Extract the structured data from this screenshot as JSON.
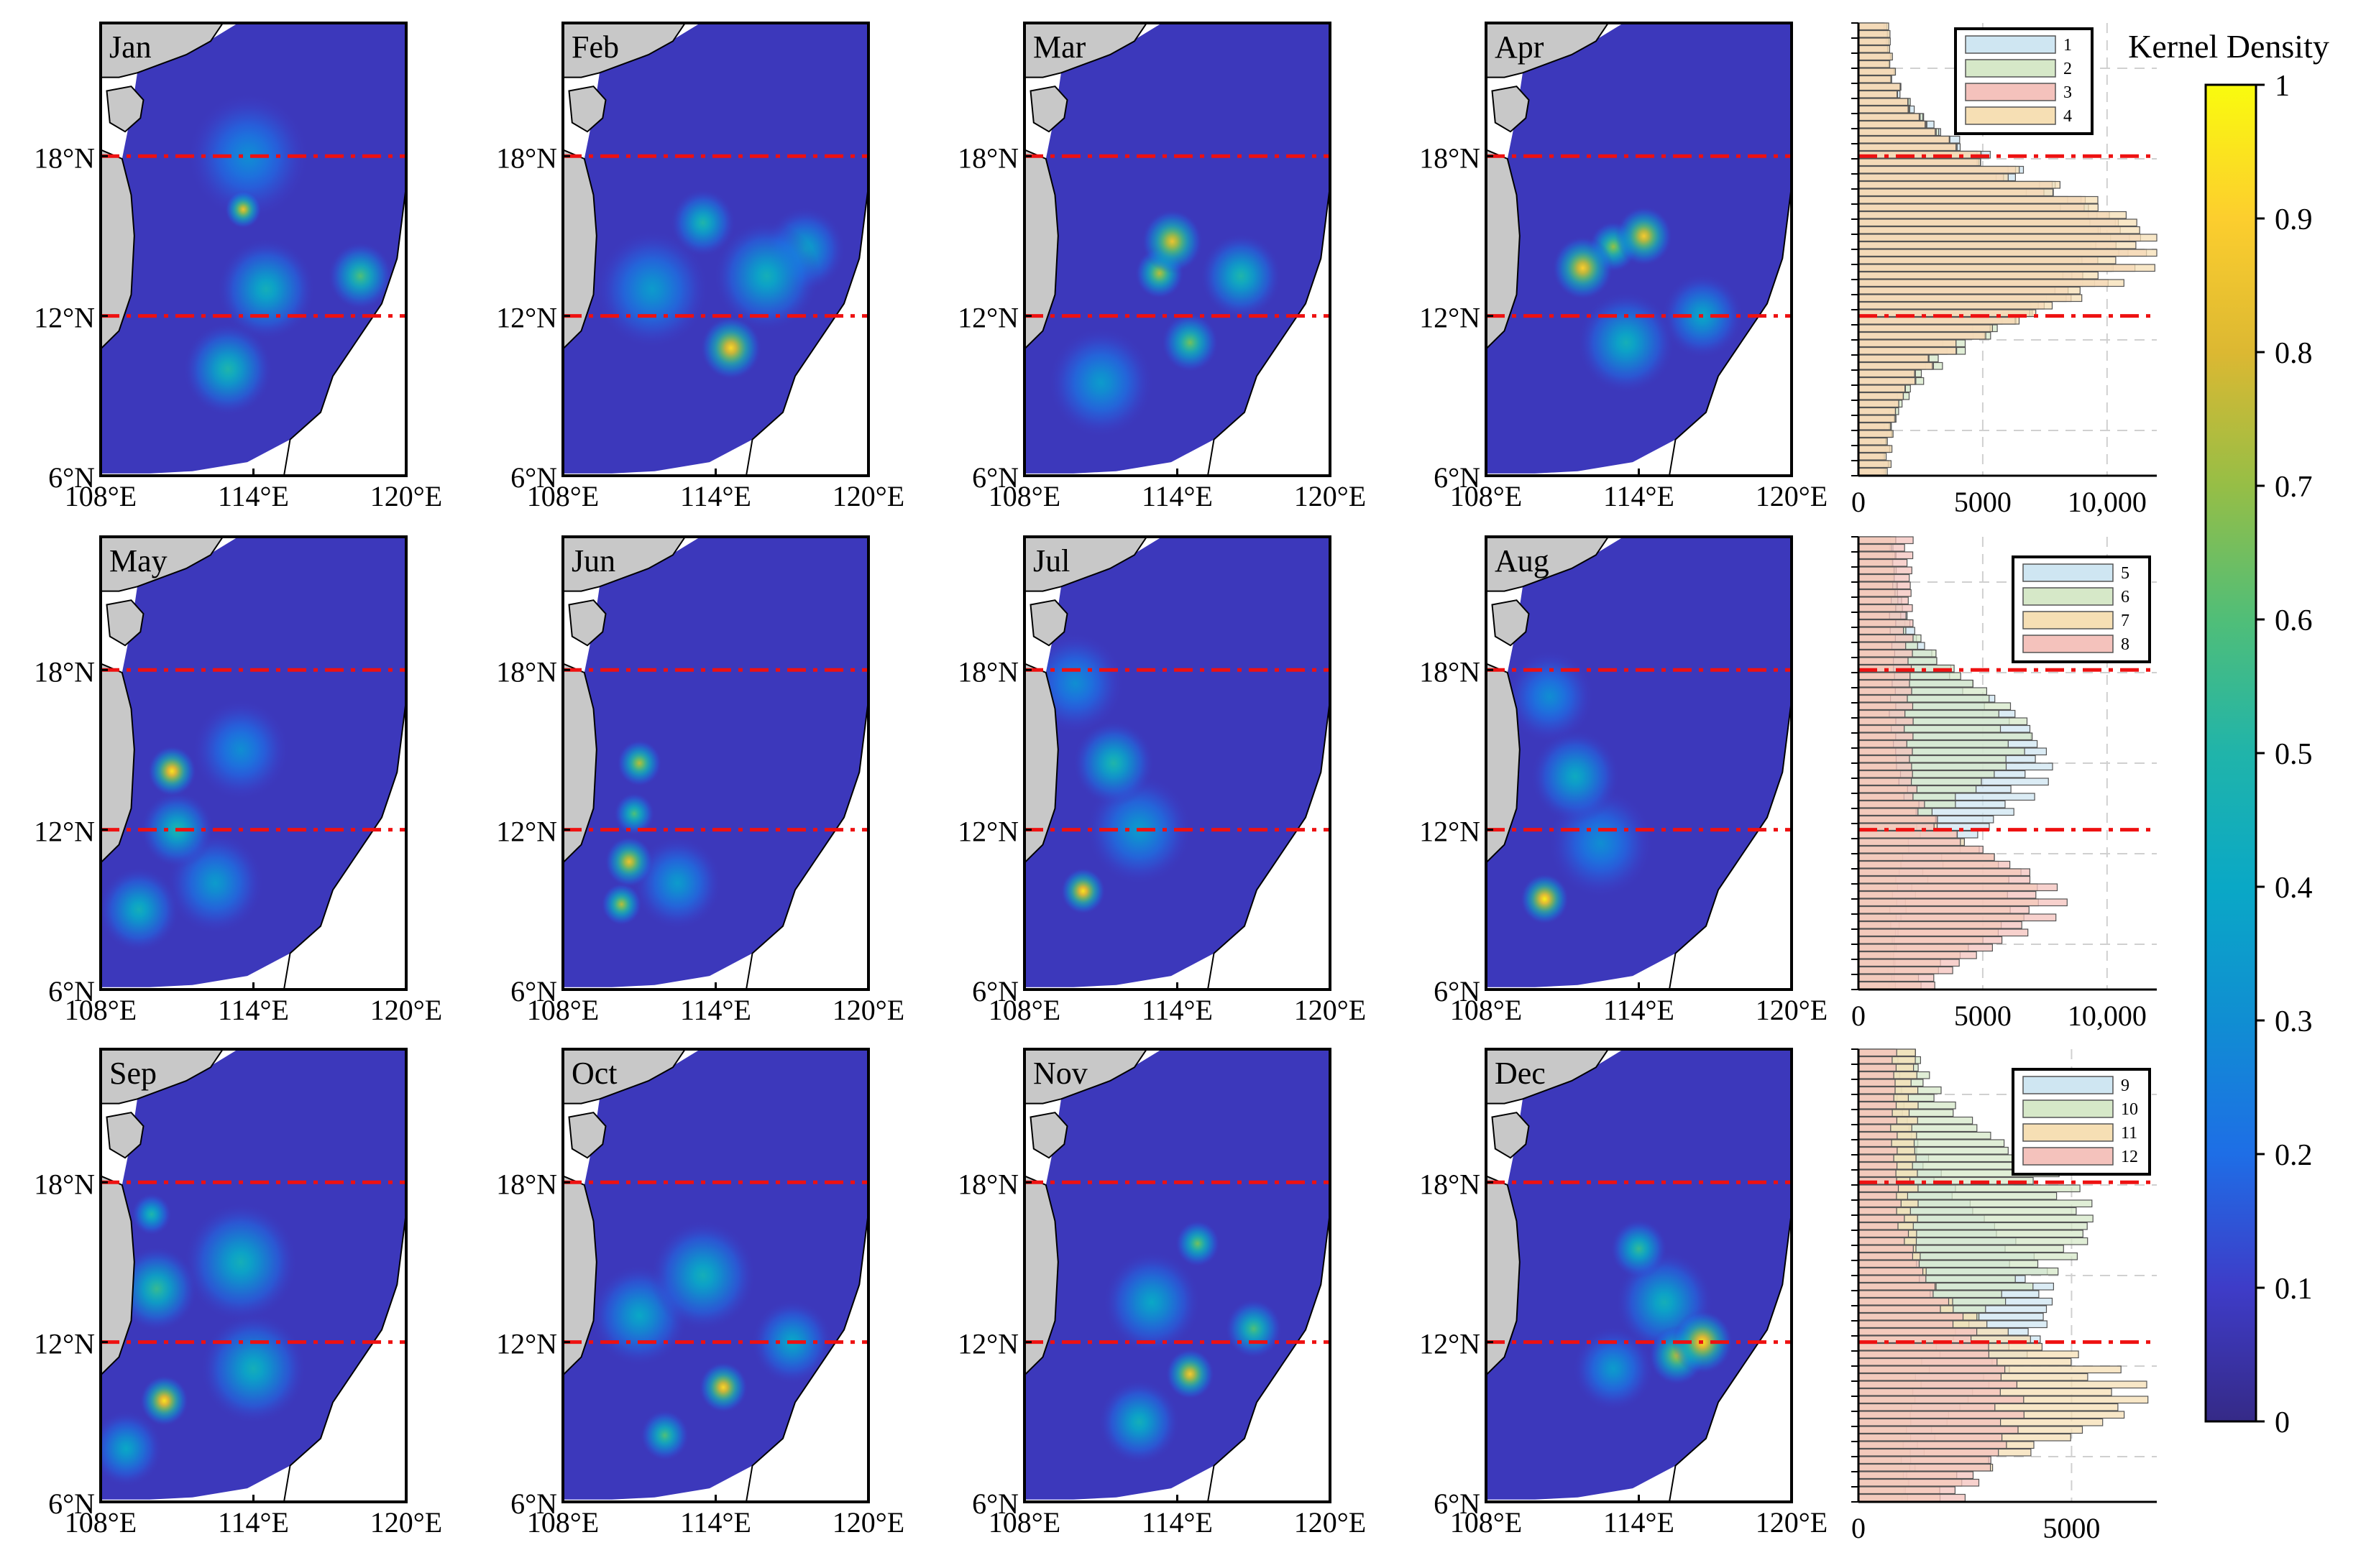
{
  "figure": {
    "colorbar": {
      "title": "Kernel Density",
      "ticks": [
        "0",
        "0.1",
        "0.2",
        "0.3",
        "0.4",
        "0.5",
        "0.6",
        "0.7",
        "0.8",
        "0.9",
        "1"
      ],
      "range": [
        0,
        1
      ],
      "colormap": "parula"
    },
    "map_axes": {
      "x_ticks": [
        "108°E",
        "114°E",
        "120°E"
      ],
      "y_ticks": [
        "6°N",
        "12°N",
        "18°N"
      ],
      "x_range_deg": [
        108,
        120
      ],
      "y_range_deg": [
        6,
        23
      ],
      "ref_lines_lat": [
        12,
        18
      ],
      "ref_line_color": "#ee1111"
    },
    "land_color": "#c8c8c8",
    "panels": [
      {
        "month": "Jan",
        "hotspots": [
          {
            "lon": 113.6,
            "lat": 16.0,
            "d": 0.85,
            "r": 0.45
          },
          {
            "lon": 118.2,
            "lat": 13.5,
            "d": 0.6,
            "r": 0.8
          },
          {
            "lon": 114.5,
            "lat": 13.0,
            "d": 0.45,
            "r": 1.2
          },
          {
            "lon": 113.0,
            "lat": 10.0,
            "d": 0.5,
            "r": 1.1
          },
          {
            "lon": 113.8,
            "lat": 18.0,
            "d": 0.3,
            "r": 1.5
          }
        ]
      },
      {
        "month": "Feb",
        "hotspots": [
          {
            "lon": 114.6,
            "lat": 10.8,
            "d": 0.92,
            "r": 0.75
          },
          {
            "lon": 113.5,
            "lat": 15.5,
            "d": 0.5,
            "r": 0.8
          },
          {
            "lon": 116.0,
            "lat": 13.5,
            "d": 0.45,
            "r": 1.3
          },
          {
            "lon": 111.5,
            "lat": 13.0,
            "d": 0.35,
            "r": 1.4
          },
          {
            "lon": 117.5,
            "lat": 14.5,
            "d": 0.4,
            "r": 1.0
          }
        ]
      },
      {
        "month": "Mar",
        "hotspots": [
          {
            "lon": 113.8,
            "lat": 14.8,
            "d": 0.85,
            "r": 0.75
          },
          {
            "lon": 113.3,
            "lat": 13.6,
            "d": 0.75,
            "r": 0.6
          },
          {
            "lon": 114.5,
            "lat": 11.0,
            "d": 0.65,
            "r": 0.7
          },
          {
            "lon": 116.5,
            "lat": 13.5,
            "d": 0.5,
            "r": 1.0
          },
          {
            "lon": 111.0,
            "lat": 9.5,
            "d": 0.35,
            "r": 1.3
          }
        ]
      },
      {
        "month": "Apr",
        "hotspots": [
          {
            "lon": 111.8,
            "lat": 13.8,
            "d": 0.9,
            "r": 0.75
          },
          {
            "lon": 114.2,
            "lat": 15.0,
            "d": 0.88,
            "r": 0.7
          },
          {
            "lon": 113.0,
            "lat": 14.6,
            "d": 0.7,
            "r": 0.6
          },
          {
            "lon": 113.5,
            "lat": 11.0,
            "d": 0.45,
            "r": 1.2
          },
          {
            "lon": 116.5,
            "lat": 12.0,
            "d": 0.4,
            "r": 1.0
          }
        ]
      },
      {
        "month": "May",
        "hotspots": [
          {
            "lon": 110.8,
            "lat": 14.2,
            "d": 0.95,
            "r": 0.6
          },
          {
            "lon": 111.0,
            "lat": 12.0,
            "d": 0.5,
            "r": 0.9
          },
          {
            "lon": 109.5,
            "lat": 9.0,
            "d": 0.45,
            "r": 1.0
          },
          {
            "lon": 112.5,
            "lat": 10.0,
            "d": 0.35,
            "r": 1.2
          },
          {
            "lon": 113.5,
            "lat": 15.0,
            "d": 0.3,
            "r": 1.2
          }
        ]
      },
      {
        "month": "Jun",
        "hotspots": [
          {
            "lon": 111.0,
            "lat": 14.5,
            "d": 0.75,
            "r": 0.55
          },
          {
            "lon": 110.6,
            "lat": 10.8,
            "d": 0.85,
            "r": 0.6
          },
          {
            "lon": 110.3,
            "lat": 9.2,
            "d": 0.75,
            "r": 0.5
          },
          {
            "lon": 110.8,
            "lat": 12.6,
            "d": 0.6,
            "r": 0.5
          },
          {
            "lon": 112.5,
            "lat": 10.0,
            "d": 0.35,
            "r": 1.1
          }
        ]
      },
      {
        "month": "Jul",
        "hotspots": [
          {
            "lon": 110.3,
            "lat": 9.7,
            "d": 0.95,
            "r": 0.55
          },
          {
            "lon": 111.5,
            "lat": 14.5,
            "d": 0.5,
            "r": 1.0
          },
          {
            "lon": 112.5,
            "lat": 12.0,
            "d": 0.35,
            "r": 1.3
          },
          {
            "lon": 110.0,
            "lat": 17.5,
            "d": 0.3,
            "r": 1.2
          }
        ]
      },
      {
        "month": "Aug",
        "hotspots": [
          {
            "lon": 110.3,
            "lat": 9.4,
            "d": 0.98,
            "r": 0.6
          },
          {
            "lon": 111.5,
            "lat": 14.0,
            "d": 0.42,
            "r": 1.1
          },
          {
            "lon": 112.5,
            "lat": 11.5,
            "d": 0.3,
            "r": 1.3
          },
          {
            "lon": 110.5,
            "lat": 17.0,
            "d": 0.3,
            "r": 1.1
          }
        ]
      },
      {
        "month": "Sep",
        "hotspots": [
          {
            "lon": 110.5,
            "lat": 9.8,
            "d": 0.95,
            "r": 0.6
          },
          {
            "lon": 110.2,
            "lat": 14.0,
            "d": 0.55,
            "r": 1.0
          },
          {
            "lon": 113.5,
            "lat": 15.0,
            "d": 0.45,
            "r": 1.4
          },
          {
            "lon": 110.0,
            "lat": 16.8,
            "d": 0.5,
            "r": 0.5
          },
          {
            "lon": 114.0,
            "lat": 11.0,
            "d": 0.45,
            "r": 1.3
          },
          {
            "lon": 109.0,
            "lat": 8.0,
            "d": 0.4,
            "r": 0.9
          }
        ]
      },
      {
        "month": "Oct",
        "hotspots": [
          {
            "lon": 114.3,
            "lat": 10.3,
            "d": 0.92,
            "r": 0.6
          },
          {
            "lon": 112.0,
            "lat": 8.5,
            "d": 0.6,
            "r": 0.6
          },
          {
            "lon": 113.5,
            "lat": 14.5,
            "d": 0.45,
            "r": 1.3
          },
          {
            "lon": 111.0,
            "lat": 13.0,
            "d": 0.4,
            "r": 1.2
          },
          {
            "lon": 117.0,
            "lat": 12.0,
            "d": 0.4,
            "r": 1.0
          }
        ]
      },
      {
        "month": "Nov",
        "hotspots": [
          {
            "lon": 114.5,
            "lat": 10.8,
            "d": 0.88,
            "r": 0.6
          },
          {
            "lon": 114.8,
            "lat": 15.7,
            "d": 0.65,
            "r": 0.55
          },
          {
            "lon": 117.0,
            "lat": 12.5,
            "d": 0.6,
            "r": 0.7
          },
          {
            "lon": 113.0,
            "lat": 13.5,
            "d": 0.4,
            "r": 1.2
          },
          {
            "lon": 112.5,
            "lat": 9.0,
            "d": 0.45,
            "r": 1.0
          }
        ]
      },
      {
        "month": "Dec",
        "hotspots": [
          {
            "lon": 116.5,
            "lat": 12.0,
            "d": 0.95,
            "r": 0.75
          },
          {
            "lon": 115.5,
            "lat": 11.5,
            "d": 0.75,
            "r": 0.7
          },
          {
            "lon": 114.0,
            "lat": 15.5,
            "d": 0.55,
            "r": 0.7
          },
          {
            "lon": 115.0,
            "lat": 13.5,
            "d": 0.45,
            "r": 1.2
          },
          {
            "lon": 113.0,
            "lat": 11.0,
            "d": 0.35,
            "r": 1.0
          }
        ]
      }
    ],
    "histograms": [
      {
        "legend": [
          "1",
          "2",
          "3",
          "4"
        ],
        "x_ticks": [
          "0",
          "5000",
          "10,000"
        ],
        "x_tick_values": [
          0,
          5000,
          10000
        ],
        "xmax": 12000,
        "series": [
          {
            "name": "1",
            "color": "#cfe6f2",
            "peak_lat": 14.8,
            "peak": 10000,
            "sigma": 2.5,
            "base": 1000
          },
          {
            "name": "2",
            "color": "#d6e8c8",
            "peak_lat": 14.5,
            "peak": 9500,
            "sigma": 2.6,
            "base": 1100
          },
          {
            "name": "3",
            "color": "#f4c2bc",
            "peak_lat": 14.6,
            "peak": 10500,
            "sigma": 2.4,
            "base": 1200
          },
          {
            "name": "4",
            "color": "#f6dfb4",
            "peak_lat": 14.6,
            "peak": 11300,
            "sigma": 2.3,
            "base": 1300
          }
        ]
      },
      {
        "legend": [
          "5",
          "6",
          "7",
          "8"
        ],
        "x_ticks": [
          "0",
          "5000",
          "10,000"
        ],
        "x_tick_values": [
          0,
          5000,
          10000
        ],
        "xmax": 12000,
        "series": [
          {
            "name": "5",
            "color": "#cfe6f2",
            "peak_lat": 14.5,
            "peak": 6500,
            "sigma": 2.5,
            "base": 1400
          },
          {
            "name": "6",
            "color": "#d6e8c8",
            "peak_lat": 15.5,
            "peak": 5500,
            "sigma": 2.0,
            "base": 1500
          },
          {
            "name": "7",
            "color": "#f6dfb4",
            "peak_lat": 9.5,
            "peak": 5800,
            "sigma": 1.8,
            "base": 1500
          },
          {
            "name": "8",
            "color": "#f4c2bc",
            "peak_lat": 9.3,
            "peak": 6200,
            "sigma": 1.6,
            "base": 2200
          }
        ]
      },
      {
        "legend": [
          "9",
          "10",
          "11",
          "12"
        ],
        "x_ticks": [
          "0",
          "5000"
        ],
        "x_tick_values": [
          0,
          5000
        ],
        "xmax": 7000,
        "series": [
          {
            "name": "9",
            "color": "#cfe6f2",
            "peak_lat": 13.5,
            "peak": 3800,
            "sigma": 3.0,
            "base": 900
          },
          {
            "name": "10",
            "color": "#d6e8c8",
            "peak_lat": 16.5,
            "peak": 4500,
            "sigma": 2.6,
            "base": 1200
          },
          {
            "name": "11",
            "color": "#f6dfb4",
            "peak_lat": 10.0,
            "peak": 5500,
            "sigma": 1.8,
            "base": 1400
          },
          {
            "name": "12",
            "color": "#f4c2bc",
            "peak_lat": 9.5,
            "peak": 3000,
            "sigma": 3.0,
            "base": 900
          }
        ]
      }
    ]
  },
  "chart_data": {
    "type": "heatmap",
    "title": "",
    "colorbar_label": "Kernel Density",
    "colorbar_range": [
      0,
      1
    ],
    "x_axis": {
      "ticks": [
        "108°E",
        "114°E",
        "120°E"
      ],
      "range": [
        108,
        120
      ]
    },
    "y_axis": {
      "ticks": [
        "6°N",
        "12°N",
        "18°N"
      ],
      "range": [
        6,
        23
      ]
    },
    "reference_lines_lat": [
      12,
      18
    ],
    "panels": [
      "Jan",
      "Feb",
      "Mar",
      "Apr",
      "May",
      "Jun",
      "Jul",
      "Aug",
      "Sep",
      "Oct",
      "Nov",
      "Dec"
    ],
    "histogram_groups": [
      {
        "legend": [
          "1",
          "2",
          "3",
          "4"
        ],
        "xlim": [
          0,
          12000
        ],
        "x_ticks": [
          0,
          5000,
          10000
        ]
      },
      {
        "legend": [
          "5",
          "6",
          "7",
          "8"
        ],
        "xlim": [
          0,
          12000
        ],
        "x_ticks": [
          0,
          5000,
          10000
        ]
      },
      {
        "legend": [
          "9",
          "10",
          "11",
          "12"
        ],
        "xlim": [
          0,
          7000
        ],
        "x_ticks": [
          0,
          5000
        ]
      }
    ]
  }
}
